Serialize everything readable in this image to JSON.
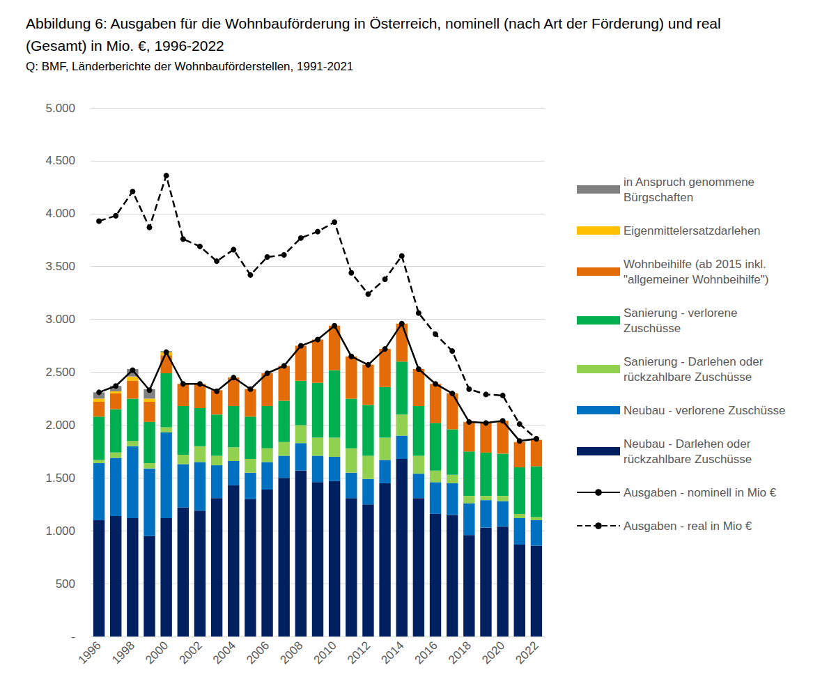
{
  "chart_data": {
    "type": "bar",
    "title": "Abbildung 6: Ausgaben für die Wohnbauförderung in Österreich, nominell (nach Art der Förderung) und real (Gesamt) in Mio. €, 1996-2022",
    "subtitle": "Q: BMF, Länderberichte der Wohnbauförderstellen, 1991-2021",
    "stacked": true,
    "grid": true,
    "legend": "right",
    "categories": [
      "1996",
      null,
      "1998",
      null,
      "2000",
      null,
      "2002",
      null,
      "2004",
      null,
      "2006",
      null,
      "2008",
      null,
      "2010",
      null,
      "2012",
      null,
      "2014",
      null,
      "2016",
      null,
      "2018",
      null,
      "2020",
      null,
      "2022"
    ],
    "ylim": [
      0,
      5000
    ],
    "yticks": [
      {
        "value": 0,
        "label": "-"
      },
      500,
      {
        "value": 1000,
        "label": "1.000"
      },
      {
        "value": 1500,
        "label": "1.500"
      },
      {
        "value": 2000,
        "label": "2.000"
      },
      {
        "value": 2500,
        "label": "2.500"
      },
      {
        "value": 3000,
        "label": "3.000"
      },
      {
        "value": 3500,
        "label": "3.500"
      },
      {
        "value": 4000,
        "label": "4.000"
      },
      {
        "value": 4500,
        "label": "4.500"
      },
      {
        "value": 5000,
        "label": "5.000"
      }
    ],
    "series": [
      {
        "name": "Neubau - Darlehen oder rückzahlbare Zuschüsse",
        "type": "bar",
        "color": "#002060",
        "values": [
          1100,
          1140,
          1120,
          950,
          1120,
          1220,
          1190,
          1310,
          1430,
          1300,
          1390,
          1500,
          1570,
          1460,
          1470,
          1310,
          1250,
          1450,
          1680,
          1310,
          1160,
          1150,
          960,
          1030,
          1040,
          870,
          860
        ]
      },
      {
        "name": "Neubau - verlorene Zuschüsse",
        "type": "bar",
        "color": "#0070c0",
        "values": [
          540,
          550,
          680,
          640,
          810,
          410,
          460,
          310,
          230,
          250,
          260,
          210,
          260,
          250,
          230,
          240,
          240,
          220,
          220,
          230,
          300,
          300,
          300,
          260,
          240,
          250,
          240
        ]
      },
      {
        "name": "Sanierung - Darlehen oder rückzahlbare Zuschüsse",
        "type": "bar",
        "color": "#92d050",
        "values": [
          30,
          50,
          50,
          50,
          50,
          90,
          150,
          90,
          130,
          130,
          130,
          130,
          170,
          170,
          180,
          230,
          220,
          210,
          200,
          170,
          110,
          80,
          70,
          40,
          50,
          40,
          30
        ]
      },
      {
        "name": "Sanierung - verlorene Zuschüsse",
        "type": "bar",
        "color": "#00b050",
        "values": [
          410,
          410,
          400,
          390,
          510,
          460,
          360,
          390,
          390,
          400,
          400,
          390,
          420,
          520,
          640,
          470,
          480,
          480,
          500,
          470,
          450,
          430,
          420,
          410,
          400,
          440,
          480
        ]
      },
      {
        "name": "Wohnbeihilfe (ab 2015 inkl. \"allgemeiner Wohnbeihilfe\")",
        "type": "bar",
        "color": "#e36c09",
        "values": [
          140,
          150,
          170,
          190,
          170,
          210,
          230,
          230,
          270,
          260,
          310,
          330,
          330,
          410,
          420,
          400,
          380,
          360,
          360,
          350,
          370,
          340,
          280,
          280,
          310,
          240,
          250
        ]
      },
      {
        "name": "Eigenmittelersatzdarlehen",
        "type": "bar",
        "color": "#ffc000",
        "values": [
          30,
          20,
          40,
          30,
          30,
          0,
          0,
          0,
          0,
          0,
          0,
          0,
          0,
          0,
          0,
          0,
          0,
          0,
          0,
          0,
          0,
          0,
          0,
          0,
          0,
          0,
          0
        ]
      },
      {
        "name": "in Anspruch genommene Bürgschaften",
        "type": "bar",
        "color": "#808080",
        "values": [
          60,
          50,
          70,
          90,
          10,
          0,
          0,
          0,
          0,
          0,
          0,
          0,
          0,
          0,
          0,
          0,
          0,
          0,
          0,
          0,
          0,
          0,
          0,
          0,
          0,
          0,
          0
        ]
      },
      {
        "name": "Ausgaben - nominell in Mio €",
        "type": "line",
        "color": "#000000",
        "marker": "circle",
        "line_style": "solid",
        "values": [
          2310,
          2370,
          2520,
          2330,
          2690,
          2390,
          2390,
          2320,
          2450,
          2340,
          2490,
          2560,
          2750,
          2810,
          2940,
          2650,
          2570,
          2720,
          2960,
          2530,
          2390,
          2300,
          2030,
          2020,
          2040,
          1850,
          1870
        ]
      },
      {
        "name": "Ausgaben - real in Mio €",
        "type": "line",
        "color": "#000000",
        "marker": "circle",
        "line_style": "dashed",
        "values": [
          3930,
          3980,
          4210,
          3870,
          4360,
          3760,
          3690,
          3550,
          3660,
          3420,
          3590,
          3610,
          3770,
          3830,
          3920,
          3440,
          3240,
          3380,
          3600,
          3060,
          2860,
          2700,
          2340,
          2290,
          2280,
          2010,
          1870
        ]
      }
    ]
  }
}
